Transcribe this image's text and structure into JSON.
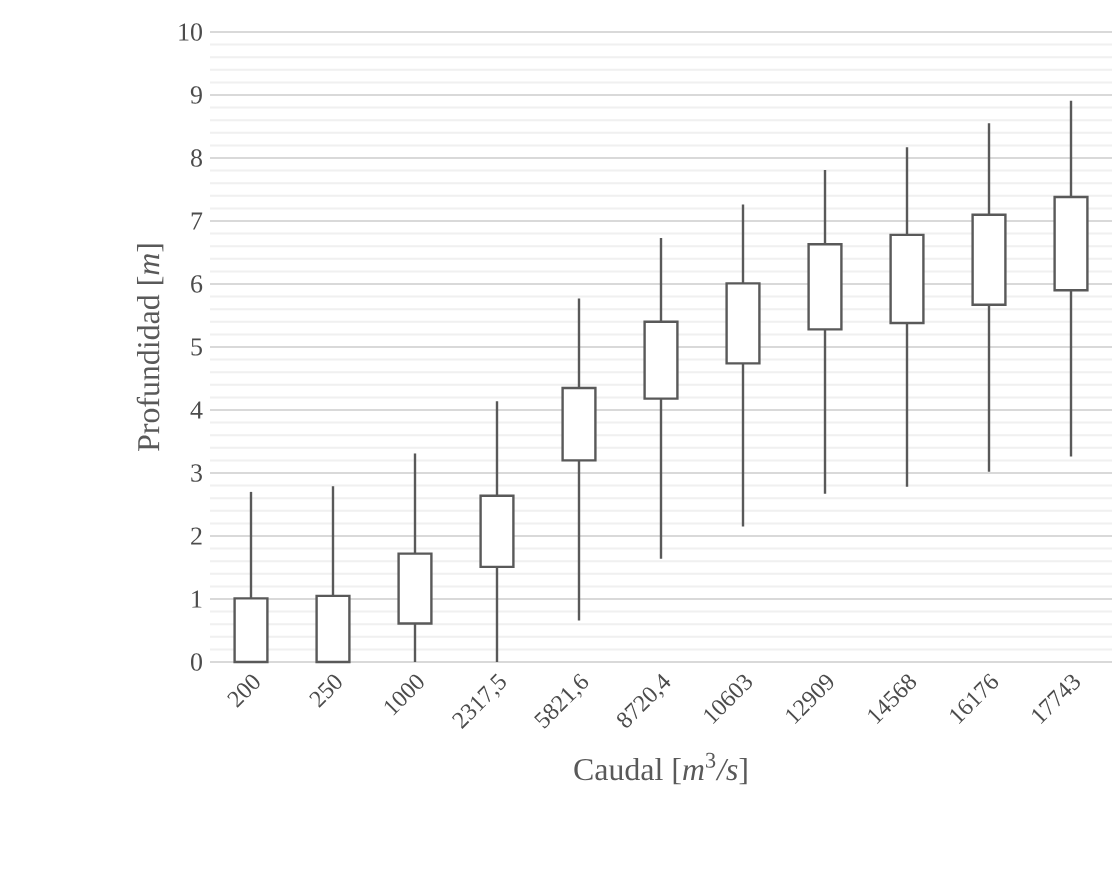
{
  "chart_data": {
    "type": "candlestick",
    "xlabel": "Caudal [*m*$^{3}$*/s*]",
    "ylabel": "Profundidad [*m*]",
    "categories": [
      "200",
      "250",
      "1000",
      "2317,5",
      "5821,6",
      "8720,4",
      "10603",
      "12909",
      "14568",
      "16176",
      "17743"
    ],
    "ohlc": [
      [
        0,
        2.7,
        0,
        1.01
      ],
      [
        0,
        2.79,
        0,
        1.05
      ],
      [
        0.61,
        3.31,
        0,
        1.72
      ],
      [
        1.51,
        4.14,
        0,
        2.64
      ],
      [
        3.2,
        5.77,
        0.66,
        4.35
      ],
      [
        4.18,
        6.73,
        1.64,
        5.4
      ],
      [
        4.74,
        7.26,
        2.15,
        6.01
      ],
      [
        5.28,
        7.81,
        2.67,
        6.63
      ],
      [
        5.38,
        8.17,
        2.78,
        6.78
      ],
      [
        5.67,
        8.55,
        3.02,
        7.1
      ],
      [
        5.9,
        8.91,
        3.26,
        7.38
      ]
    ],
    "color": "#595959",
    "ylim": [
      0,
      10
    ],
    "yticks": [
      0,
      1,
      2,
      3,
      4,
      5,
      6,
      7,
      8,
      9,
      10
    ],
    "grid": "y"
  }
}
